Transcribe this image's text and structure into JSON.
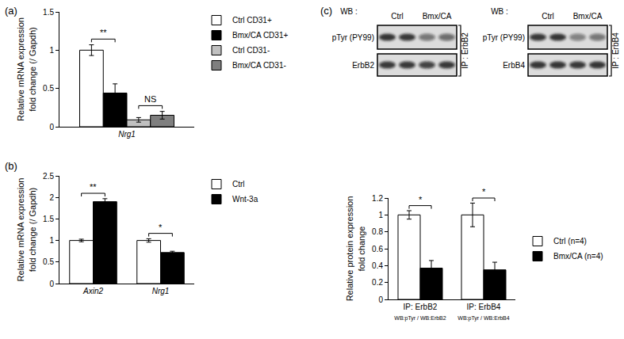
{
  "chart_data": [
    {
      "type": "bar",
      "panel": "(a)",
      "ylabel": "Relative mRNA expression\nfold change (/ Gapdh)",
      "categories": [
        "Nrg1"
      ],
      "series": [
        {
          "name": "Ctrl CD31+",
          "color": "#ffffff",
          "values": [
            1.0
          ],
          "errors": [
            0.07
          ]
        },
        {
          "name": "Bmx/CA CD31+",
          "color": "#000000",
          "values": [
            0.44
          ],
          "errors": [
            0.12
          ]
        },
        {
          "name": "Ctrl CD31-",
          "color": "#c0c0c0",
          "values": [
            0.09
          ],
          "errors": [
            0.03
          ]
        },
        {
          "name": "Bmx/CA CD31-",
          "color": "#7f7f7f",
          "values": [
            0.15
          ],
          "errors": [
            0.05
          ]
        }
      ],
      "ylim": [
        0,
        1.5
      ],
      "yticks": [
        0,
        0.5,
        1,
        1.5
      ],
      "legend": "top right",
      "annotations": [
        {
          "text": "**",
          "category": 0,
          "series": [
            0,
            1
          ]
        },
        {
          "text": "NS",
          "category": 0,
          "series": [
            2,
            3
          ]
        }
      ]
    },
    {
      "type": "bar",
      "panel": "(b)",
      "ylabel": "Relative mRNA expression\nfold change (/ Gapdh)",
      "categories": [
        "Axin2",
        "Nrg1"
      ],
      "series": [
        {
          "name": "Ctrl",
          "color": "#ffffff",
          "values": [
            1.0,
            1.0
          ],
          "errors": [
            0.03,
            0.04
          ]
        },
        {
          "name": "Wnt-3a",
          "color": "#000000",
          "values": [
            1.9,
            0.72
          ],
          "errors": [
            0.07,
            0.03
          ]
        }
      ],
      "ylim": [
        0,
        2.5
      ],
      "yticks": [
        0,
        0.5,
        1,
        1.5,
        2,
        2.5
      ],
      "legend": "top right",
      "annotations": [
        {
          "text": "**",
          "category": 0,
          "series": [
            0,
            1
          ]
        },
        {
          "text": "*",
          "category": 1,
          "series": [
            0,
            1
          ]
        }
      ]
    },
    {
      "type": "bar",
      "panel": "(c)",
      "ylabel": "Relative protein expression\nfold change",
      "categories": [
        "IP: ErbB2",
        "IP: ErbB4"
      ],
      "category_notes": [
        "WB:pTyr / WB:ErbB2",
        "WB:pTyr / WB:ErbB4"
      ],
      "series": [
        {
          "name": "Ctrl (n=4)",
          "color": "#ffffff",
          "values": [
            1.0,
            1.0
          ],
          "errors": [
            0.05,
            0.14
          ]
        },
        {
          "name": "Bmx/CA (n=4)",
          "color": "#000000",
          "values": [
            0.37,
            0.35
          ],
          "errors": [
            0.09,
            0.09
          ]
        }
      ],
      "ylim": [
        0,
        1.2
      ],
      "yticks": [
        0,
        0.2,
        0.4,
        0.6,
        0.8,
        1,
        1.2
      ],
      "legend": "right",
      "annotations": [
        {
          "text": "*",
          "category": 0,
          "series": [
            0,
            1
          ]
        },
        {
          "text": "*",
          "category": 1,
          "series": [
            0,
            1
          ]
        }
      ]
    }
  ],
  "blots": [
    {
      "wb_label": "WB :",
      "lanes": [
        "Ctrl",
        "Bmx/CA"
      ],
      "rows": [
        "pTyr (PY99)",
        "ErbB2"
      ],
      "ip_label": "IP :",
      "ip_target": "ErbB2"
    },
    {
      "wb_label": "WB :",
      "lanes": [
        "Ctrl",
        "Bmx/CA"
      ],
      "rows": [
        "pTyr (PY99)",
        "ErbB4"
      ],
      "ip_label": "IP :",
      "ip_target": "ErbB4"
    }
  ]
}
